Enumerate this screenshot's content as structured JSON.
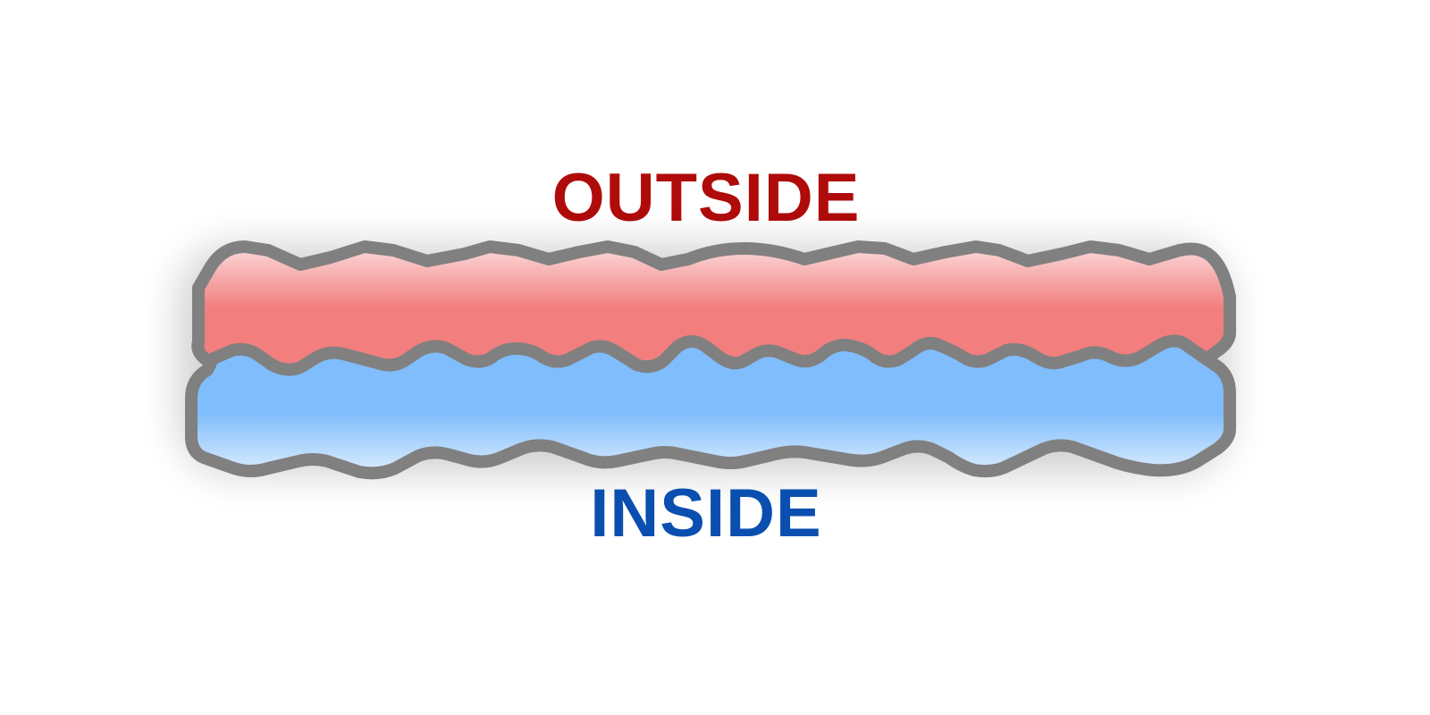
{
  "labels": {
    "outside": "OUTSIDE",
    "inside": "INSIDE"
  },
  "colors": {
    "outside_text": "#b00b0b",
    "inside_text": "#0a4fb0",
    "outside_fill": "#f27e7e",
    "inside_fill": "#80bdfc",
    "outline": "#808080"
  }
}
